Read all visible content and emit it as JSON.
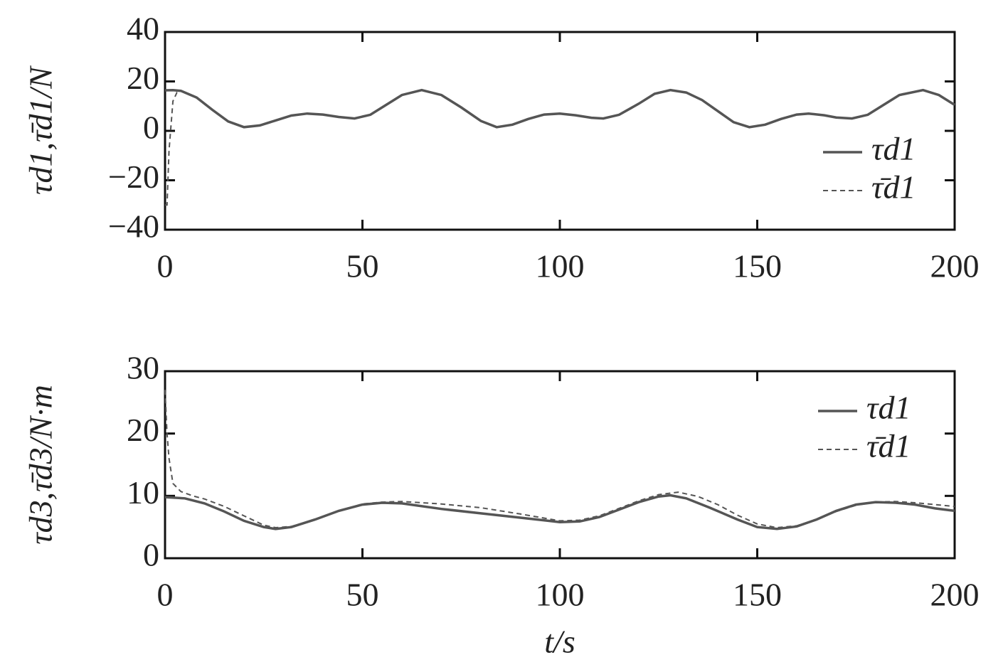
{
  "chart_data": [
    {
      "type": "line",
      "ylabel": "τd1,τ̄d1/N",
      "xlim": [
        0,
        200
      ],
      "xticks": [
        0,
        50,
        100,
        150,
        200
      ],
      "ylim": [
        -40,
        40
      ],
      "yticks": [
        {
          "value": -40,
          "label": "−40"
        },
        {
          "value": -20,
          "label": "−20"
        },
        0,
        20,
        40
      ],
      "legend": "right",
      "series": [
        {
          "name": "τd1",
          "color": "#555555",
          "style": "solid",
          "x": [
            0,
            2,
            4,
            8,
            12,
            16,
            20,
            24,
            28,
            32,
            36,
            40,
            44,
            48,
            52,
            56,
            60,
            65,
            70,
            75,
            80,
            84,
            88,
            92,
            96,
            100,
            104,
            108,
            111,
            115,
            120,
            124,
            128,
            132,
            136,
            140,
            144,
            148,
            152,
            156,
            160,
            163,
            167,
            170,
            174,
            178,
            182,
            186,
            192,
            196,
            200
          ],
          "values": [
            16.4,
            16.5,
            16.2,
            13.5,
            8.5,
            3.8,
            1.5,
            2.2,
            4.2,
            6.2,
            7,
            6.6,
            5.6,
            5,
            6.5,
            10.5,
            14.5,
            16.5,
            14.5,
            9.5,
            4,
            1.5,
            2.5,
            4.8,
            6.6,
            7,
            6.3,
            5.3,
            5,
            6.5,
            11,
            15,
            16.5,
            15.5,
            12.5,
            8,
            3.5,
            1.5,
            2.5,
            4.8,
            6.6,
            7,
            6.3,
            5.4,
            5,
            6.5,
            10.5,
            14.5,
            16.5,
            14.5,
            10.5
          ]
        },
        {
          "name": "τ̄d1",
          "color": "#555555",
          "style": "dashed",
          "x": [
            0,
            0.5,
            1,
            2,
            3,
            4,
            8,
            12,
            16,
            20,
            24,
            28,
            32,
            36,
            40,
            44,
            48,
            52,
            56,
            60,
            65,
            70,
            75,
            80,
            84,
            88,
            92,
            96,
            100,
            104,
            108,
            111,
            115,
            120,
            124,
            128,
            132,
            136,
            140,
            144,
            148,
            152,
            156,
            160,
            163,
            167,
            170,
            174,
            178,
            182,
            186,
            192,
            196,
            200
          ],
          "values": [
            -30,
            -30,
            -8,
            12,
            15.5,
            16.2,
            13.3,
            8.3,
            3.7,
            1.5,
            2.2,
            4.2,
            6.2,
            7,
            6.6,
            5.6,
            5,
            6.6,
            10.6,
            14.6,
            16.5,
            14.3,
            9.3,
            3.9,
            1.5,
            2.5,
            4.8,
            6.6,
            7,
            6.3,
            5.3,
            5,
            6.6,
            11.1,
            15,
            16.5,
            15.4,
            12.3,
            7.8,
            3.4,
            1.5,
            2.5,
            4.8,
            6.6,
            7,
            6.3,
            5.4,
            5,
            6.6,
            10.6,
            14.6,
            16.5,
            14.4,
            10.4
          ]
        }
      ]
    },
    {
      "type": "line",
      "ylabel": "τd3,τ̄d3/N·m",
      "xlabel": "t/s",
      "xlim": [
        0,
        200
      ],
      "xticks": [
        0,
        50,
        100,
        150,
        200
      ],
      "ylim": [
        0,
        30
      ],
      "yticks": [
        0,
        10,
        20,
        30
      ],
      "legend": "upper right",
      "series": [
        {
          "name": "τd1",
          "color": "#555555",
          "style": "solid",
          "x": [
            0,
            5,
            10,
            15,
            20,
            25,
            28,
            32,
            38,
            44,
            50,
            55,
            60,
            70,
            80,
            90,
            100,
            105,
            110,
            115,
            120,
            125,
            128,
            132,
            138,
            145,
            150,
            155,
            160,
            165,
            170,
            175,
            180,
            185,
            190,
            195,
            200
          ],
          "values": [
            9.8,
            9.6,
            8.8,
            7.5,
            6,
            5,
            4.7,
            5,
            6.2,
            7.6,
            8.6,
            8.9,
            8.8,
            7.9,
            7.2,
            6.5,
            5.8,
            5.9,
            6.6,
            7.8,
            9,
            9.9,
            10.1,
            9.6,
            8.1,
            6.2,
            5,
            4.7,
            5.1,
            6.2,
            7.6,
            8.6,
            9,
            8.9,
            8.6,
            8,
            7.6
          ]
        },
        {
          "name": "τ̄d1",
          "color": "#555555",
          "style": "dashed",
          "x": [
            0,
            0.5,
            1,
            2,
            4,
            7,
            10,
            15,
            20,
            25,
            28,
            32,
            38,
            44,
            50,
            55,
            60,
            70,
            80,
            90,
            100,
            105,
            110,
            115,
            120,
            125,
            130,
            135,
            140,
            145,
            150,
            155,
            160,
            165,
            170,
            175,
            180,
            185,
            190,
            195,
            200
          ],
          "values": [
            27,
            20,
            16,
            12,
            10.7,
            10,
            9.5,
            8.3,
            6.8,
            5.3,
            4.9,
            5.1,
            6.2,
            7.6,
            8.7,
            9,
            9.1,
            8.7,
            8.1,
            7.1,
            6,
            6.1,
            6.8,
            8,
            9.2,
            10.2,
            10.6,
            9.9,
            8.6,
            6.9,
            5.5,
            4.9,
            5.2,
            6.2,
            7.5,
            8.5,
            9,
            9.1,
            8.9,
            8.6,
            8.3
          ]
        }
      ]
    }
  ]
}
